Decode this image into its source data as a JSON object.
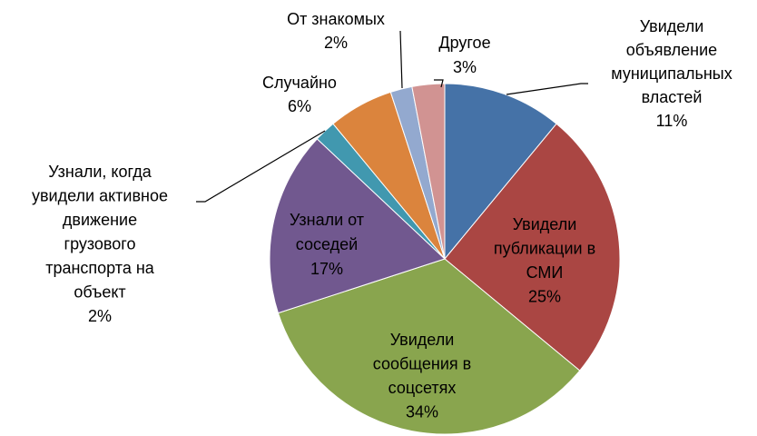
{
  "chart_data": {
    "type": "pie",
    "categories": [
      [
        "Увидели",
        "объявление",
        "муниципальных",
        "властей"
      ],
      [
        "Увидели",
        "публикации в",
        "СМИ"
      ],
      [
        "Увидели",
        "сообщения в",
        "соцсетях"
      ],
      [
        "Узнали от",
        "соседей"
      ],
      [
        "Узнали, когда",
        "увидели активное",
        "движение",
        "грузового",
        "транспорта на",
        "объект"
      ],
      [
        "Случайно"
      ],
      [
        "От знакомых"
      ],
      [
        "Другое"
      ]
    ],
    "values": [
      11,
      25,
      34,
      17,
      2,
      6,
      2,
      3
    ],
    "value_labels": [
      "11%",
      "25%",
      "34%",
      "17%",
      "2%",
      "6%",
      "2%",
      "3%"
    ],
    "colors": [
      "#4572a7",
      "#aa4643",
      "#89a54e",
      "#71588f",
      "#4198af",
      "#db843d",
      "#93a9cf",
      "#d19392"
    ]
  }
}
